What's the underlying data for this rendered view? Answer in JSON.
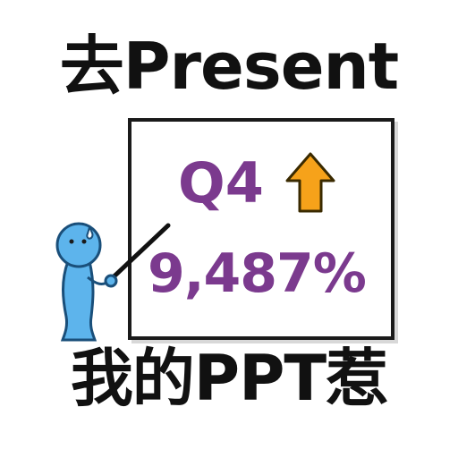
{
  "caption_top": "去Present",
  "board": {
    "quarter": "Q4",
    "percent": "9,487%",
    "arrow_icon": "up-arrow-icon"
  },
  "caption_bottom": "我的PPT惹",
  "colors": {
    "purple": "#7b3a8e",
    "arrow_fill": "#f6a21a",
    "arrow_stroke": "#3a2a00",
    "figure_fill": "#5db4ec",
    "figure_stroke": "#1a4f7a"
  }
}
